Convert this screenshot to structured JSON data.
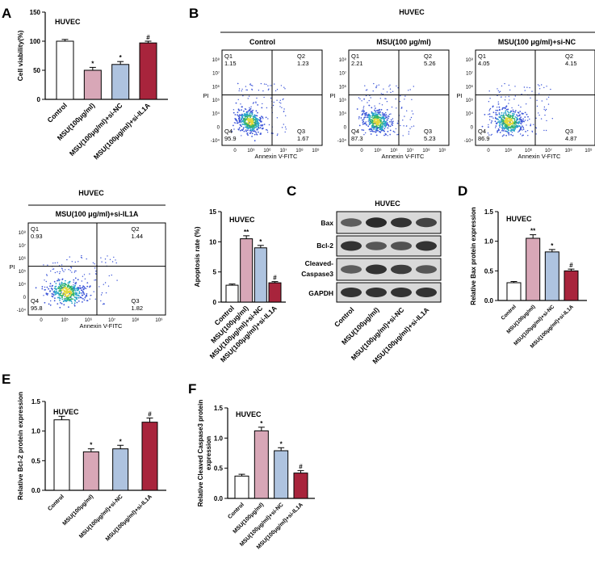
{
  "colors": {
    "control": "#ffffff",
    "msu": "#d8a7b7",
    "sinc": "#aec3df",
    "siil1a": "#a8243c",
    "flow_dots": "#3c55d8"
  },
  "conditions": [
    "Control",
    "MSU(100μg/ml)",
    "MSU(100μg/ml)+si-NC",
    "MSU(100μg/ml)+si-IL1A"
  ],
  "chart_data": [
    {
      "panel": "A",
      "type": "bar",
      "title": "HUVEC",
      "ylabel": "Cell viability(%)",
      "ylim": [
        0,
        150
      ],
      "yticks": [
        "0",
        "50",
        "100",
        "150"
      ],
      "categories": [
        "Control",
        "MSU(100μg/ml)",
        "MSU(100μg/ml)+si-NC",
        "MSU(100μg/ml)+si-IL1A"
      ],
      "values": [
        100,
        50,
        60,
        97
      ],
      "errors": [
        3,
        5,
        5,
        3
      ],
      "significance": [
        "",
        "*",
        "*",
        "#"
      ]
    },
    {
      "panel": "B4",
      "type": "bar",
      "title": "HUVEC",
      "ylabel": "Apoptosis rate (%)",
      "ylim": [
        0,
        15
      ],
      "yticks": [
        "0",
        "5",
        "10",
        "15"
      ],
      "categories": [
        "Control",
        "MSU(100μg/ml)",
        "MSU(100μg/ml)+si-NC",
        "MSU(100μg/ml)+si-IL1A"
      ],
      "values": [
        2.8,
        10.5,
        9.0,
        3.2
      ],
      "errors": [
        0.2,
        0.5,
        0.4,
        0.2
      ],
      "significance": [
        "",
        "**",
        "*",
        "#"
      ]
    },
    {
      "panel": "D",
      "type": "bar",
      "title": "HUVEC",
      "ylabel": "Relative Bax protein expression",
      "ylim": [
        0,
        1.5
      ],
      "yticks": [
        "0.0",
        "0.5",
        "1.0",
        "1.5"
      ],
      "categories": [
        "Control",
        "MSU(100μg/ml)",
        "MSU(100μg/ml)+si-NC",
        "MSU(100μg/ml)+si-IL1A"
      ],
      "values": [
        0.3,
        1.05,
        0.82,
        0.5
      ],
      "errors": [
        0.02,
        0.06,
        0.04,
        0.03
      ],
      "significance": [
        "",
        "**",
        "*",
        "#"
      ]
    },
    {
      "panel": "E",
      "type": "bar",
      "title": "HUVEC",
      "ylabel": "Relative Bcl-2 protein expression",
      "ylim": [
        0,
        1.5
      ],
      "yticks": [
        "0.0",
        "0.5",
        "1.0",
        "1.5"
      ],
      "categories": [
        "Control",
        "MSU(100μg/ml)",
        "MSU(100μg/ml)+si-NC",
        "MSU(100μg/ml)+si-IL1A"
      ],
      "values": [
        1.19,
        0.65,
        0.7,
        1.15
      ],
      "errors": [
        0.06,
        0.05,
        0.06,
        0.07
      ],
      "significance": [
        "",
        "*",
        "*",
        "#"
      ]
    },
    {
      "panel": "F",
      "type": "bar",
      "title": "HUVEC",
      "ylabel": "Relative Cleaved Caspase3 protein expression",
      "ylabel_lines": [
        "Relative Cleaved Caspase3 protein",
        "expression"
      ],
      "ylim": [
        0,
        1.5
      ],
      "yticks": [
        "0.0",
        "0.5",
        "1.0",
        "1.5"
      ],
      "categories": [
        "Control",
        "MSU(100μg/ml)",
        "MSU(100μg/ml)+si-NC",
        "MSU(100μg/ml)+si-IL1A"
      ],
      "values": [
        0.37,
        1.12,
        0.79,
        0.42
      ],
      "errors": [
        0.03,
        0.06,
        0.05,
        0.04
      ],
      "significance": [
        "",
        "*",
        "*",
        "#"
      ]
    }
  ],
  "panels": {
    "A": {
      "letter": "A"
    },
    "B": {
      "letter": "B",
      "title": "HUVEC"
    },
    "C": {
      "letter": "C",
      "title": "HUVEC",
      "labels": [
        "Bax",
        "Bcl-2",
        "Cleaved-",
        "Caspase3",
        "GAPDH"
      ],
      "xlabels": [
        "Control",
        "MSU(100μg/ml)",
        "MSU(100μg/ml)+si-NC",
        "MSU(100μg/ml)+si-IL1A"
      ]
    },
    "D": {
      "letter": "D"
    },
    "E": {
      "letter": "E"
    },
    "F": {
      "letter": "F"
    }
  },
  "flow": {
    "group_title": "HUVEC",
    "xlabel": "Annexin V-FITC",
    "ylabel": "PI",
    "yticks": [
      "10⁸",
      "10⁷",
      "10⁶",
      "10⁵",
      "10⁴",
      "0",
      "-10⁴"
    ],
    "xticks": [
      "0",
      "10⁵",
      "10⁶",
      "10⁷",
      "10⁸",
      "10⁹"
    ],
    "plots": [
      {
        "title": "Control",
        "q1": "1.15",
        "q2": "1.23",
        "q3": "1.67",
        "q4": "95.9"
      },
      {
        "title": "MSU(100 μg/ml)",
        "q1": "2.21",
        "q2": "5.26",
        "q3": "5.23",
        "q4": "87.3"
      },
      {
        "title": "MSU(100 μg/ml)+si-NC",
        "q1": "4.05",
        "q2": "4.15",
        "q3": "4.87",
        "q4": "86.9"
      },
      {
        "title": "MSU(100 μg/ml)+si-IL1A",
        "q1": "0.93",
        "q2": "1.44",
        "q3": "1.82",
        "q4": "95.8"
      }
    ],
    "quadrant_labels": [
      "Q1",
      "Q2",
      "Q3",
      "Q4"
    ]
  }
}
